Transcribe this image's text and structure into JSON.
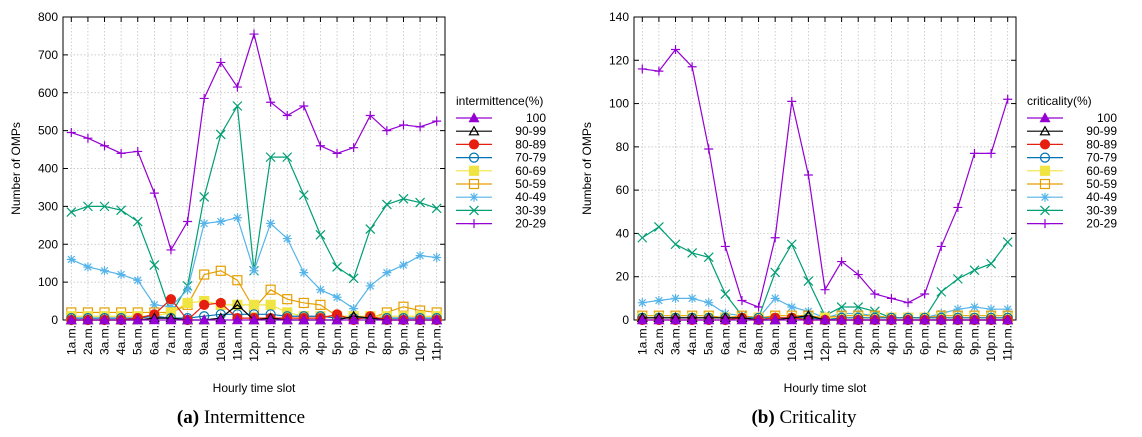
{
  "captions": [
    {
      "letter": "(a)",
      "text": "Intermittence"
    },
    {
      "letter": "(b)",
      "text": "Criticality"
    }
  ],
  "x_categories": [
    "1a.m.",
    "2a.m.",
    "3a.m.",
    "4a.m.",
    "5a.m.",
    "6a.m.",
    "7a.m.",
    "8a.m.",
    "9a.m.",
    "10a.m.",
    "11a.m.",
    "12p.m.",
    "1p.m.",
    "2p.m.",
    "3p.m.",
    "4p.m.",
    "5p.m.",
    "6p.m.",
    "7p.m.",
    "8p.m.",
    "9p.m.",
    "10p.m.",
    "11p.m."
  ],
  "series_style": [
    {
      "marker": "filled-triangle",
      "color": "#9400d3"
    },
    {
      "marker": "open-triangle",
      "color": "#000000"
    },
    {
      "marker": "filled-circle",
      "color": "#e51e10"
    },
    {
      "marker": "open-circle",
      "color": "#0072b2"
    },
    {
      "marker": "filled-square",
      "color": "#f0e442"
    },
    {
      "marker": "open-square",
      "color": "#e69f00"
    },
    {
      "marker": "asterisk",
      "color": "#56b4e9"
    },
    {
      "marker": "x",
      "color": "#009e73"
    },
    {
      "marker": "plus",
      "color": "#9400d3"
    }
  ],
  "chart_data": [
    {
      "type": "line",
      "title": "",
      "xlabel": "Hourly time slot",
      "ylabel": "Number of OMPs",
      "ylim": [
        0,
        800
      ],
      "yticks": [
        0,
        100,
        200,
        300,
        400,
        500,
        600,
        700,
        800
      ],
      "grid": true,
      "legend_title": "intermittence(%)",
      "legend_position": "right",
      "series": [
        {
          "name": "100",
          "values": [
            0,
            0,
            0,
            0,
            0,
            0,
            0,
            0,
            0,
            0,
            0,
            0,
            0,
            0,
            0,
            0,
            0,
            0,
            0,
            0,
            0,
            0,
            0
          ]
        },
        {
          "name": "90-99",
          "values": [
            0,
            0,
            0,
            0,
            0,
            5,
            5,
            0,
            0,
            5,
            40,
            0,
            5,
            0,
            0,
            0,
            0,
            10,
            5,
            0,
            0,
            0,
            0
          ]
        },
        {
          "name": "80-89",
          "values": [
            0,
            0,
            0,
            0,
            5,
            15,
            55,
            0,
            40,
            45,
            5,
            5,
            5,
            5,
            5,
            5,
            15,
            0,
            10,
            0,
            0,
            0,
            0
          ]
        },
        {
          "name": "70-79",
          "values": [
            5,
            5,
            5,
            5,
            5,
            10,
            5,
            5,
            10,
            15,
            15,
            15,
            15,
            10,
            10,
            10,
            5,
            5,
            5,
            5,
            5,
            5,
            5
          ]
        },
        {
          "name": "60-69",
          "values": [
            10,
            10,
            10,
            10,
            10,
            10,
            20,
            45,
            50,
            40,
            40,
            40,
            40,
            20,
            10,
            10,
            10,
            10,
            10,
            10,
            10,
            10,
            10
          ]
        },
        {
          "name": "50-59",
          "values": [
            20,
            20,
            20,
            20,
            20,
            20,
            20,
            40,
            120,
            130,
            105,
            30,
            80,
            55,
            45,
            40,
            10,
            5,
            5,
            20,
            35,
            25,
            20
          ]
        },
        {
          "name": "40-49",
          "values": [
            160,
            140,
            130,
            120,
            105,
            40,
            35,
            80,
            255,
            260,
            270,
            130,
            255,
            215,
            125,
            80,
            60,
            30,
            90,
            125,
            145,
            170,
            165
          ]
        },
        {
          "name": "30-39",
          "values": [
            285,
            300,
            300,
            290,
            260,
            145,
            15,
            90,
            325,
            490,
            565,
            130,
            430,
            430,
            330,
            225,
            140,
            110,
            240,
            305,
            320,
            310,
            295
          ]
        },
        {
          "name": "20-29",
          "values": [
            495,
            480,
            460,
            440,
            445,
            335,
            185,
            260,
            585,
            680,
            615,
            755,
            575,
            540,
            565,
            460,
            440,
            455,
            540,
            500,
            515,
            510,
            525
          ]
        }
      ]
    },
    {
      "type": "line",
      "title": "",
      "xlabel": "Hourly time slot",
      "ylabel": "Number of OMPs",
      "ylim": [
        0,
        140
      ],
      "yticks": [
        0,
        20,
        40,
        60,
        80,
        100,
        120,
        140
      ],
      "grid": true,
      "legend_title": "criticality(%)",
      "legend_position": "right",
      "series": [
        {
          "name": "100",
          "values": [
            0,
            0,
            0,
            0,
            0,
            0,
            0,
            0,
            0,
            0,
            0,
            0,
            0,
            0,
            0,
            0,
            0,
            0,
            0,
            0,
            0,
            0,
            0
          ]
        },
        {
          "name": "90-99",
          "values": [
            1,
            1,
            1,
            1,
            1,
            1,
            1,
            0,
            0,
            1,
            2,
            0,
            0,
            0,
            0,
            0,
            0,
            0,
            0,
            0,
            0,
            0,
            0
          ]
        },
        {
          "name": "80-89",
          "values": [
            0,
            0,
            0,
            0,
            0,
            0,
            1,
            0,
            1,
            1,
            0,
            0,
            0,
            0,
            0,
            0,
            0,
            0,
            0,
            0,
            0,
            0,
            0
          ]
        },
        {
          "name": "70-79",
          "values": [
            1,
            1,
            1,
            1,
            1,
            1,
            1,
            1,
            1,
            1,
            1,
            0,
            1,
            1,
            1,
            1,
            1,
            1,
            1,
            1,
            1,
            1,
            1
          ]
        },
        {
          "name": "60-69",
          "values": [
            1,
            1,
            1,
            1,
            1,
            1,
            1,
            1,
            1,
            1,
            1,
            1,
            1,
            1,
            1,
            1,
            1,
            1,
            1,
            1,
            1,
            1,
            1
          ]
        },
        {
          "name": "50-59",
          "values": [
            2,
            2,
            2,
            2,
            2,
            1,
            2,
            1,
            2,
            2,
            2,
            1,
            2,
            2,
            2,
            1,
            1,
            1,
            2,
            2,
            2,
            2,
            2
          ]
        },
        {
          "name": "40-49",
          "values": [
            8,
            9,
            10,
            10,
            8,
            3,
            2,
            1,
            10,
            6,
            4,
            1,
            3,
            3,
            2,
            1,
            1,
            1,
            3,
            5,
            6,
            5,
            5
          ]
        },
        {
          "name": "30-39",
          "values": [
            38,
            43,
            35,
            31,
            29,
            12,
            2,
            1,
            22,
            35,
            18,
            2,
            6,
            6,
            4,
            1,
            1,
            1,
            13,
            19,
            23,
            26,
            36
          ]
        },
        {
          "name": "20-29",
          "values": [
            116,
            115,
            125,
            117,
            79,
            34,
            9,
            6,
            38,
            101,
            67,
            14,
            27,
            21,
            12,
            10,
            8,
            12,
            34,
            52,
            77,
            77,
            102
          ]
        }
      ]
    }
  ]
}
